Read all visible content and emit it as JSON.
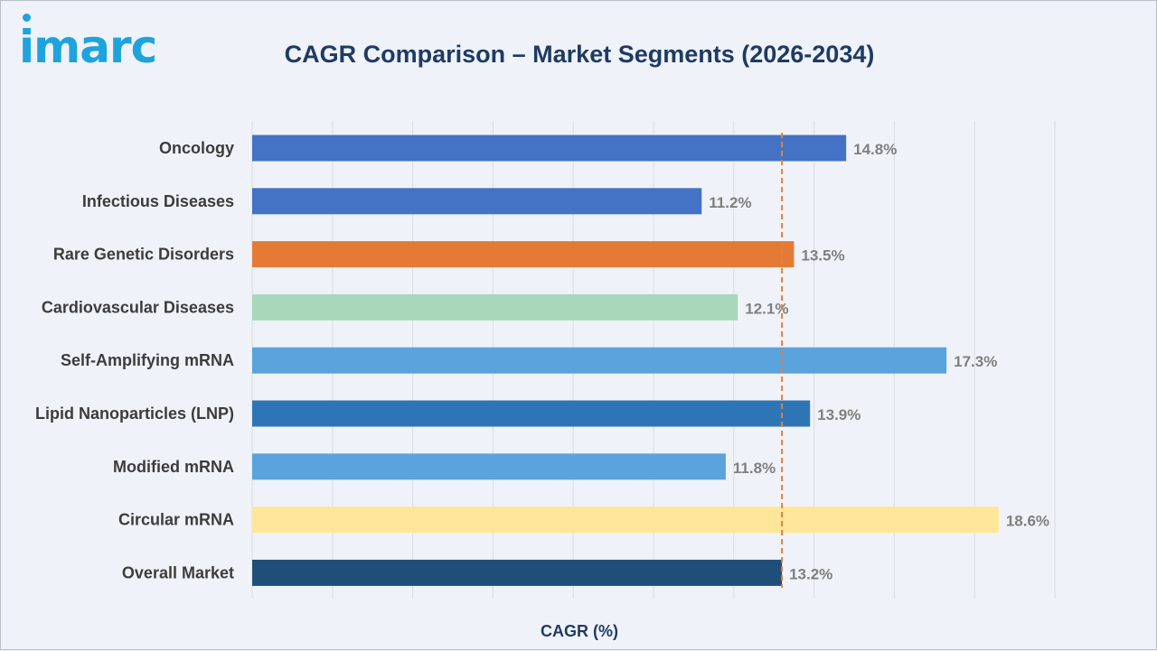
{
  "logo": {
    "text": "imarc"
  },
  "chart_data": {
    "type": "bar",
    "orientation": "horizontal",
    "title": "CAGR Comparison – Market Segments (2026-2034)",
    "xlabel": "CAGR (%)",
    "ylabel": "",
    "xlim": [
      0,
      20
    ],
    "grid": true,
    "reference_line": {
      "value": 13.2,
      "style": "dashed",
      "color": "#e5813a"
    },
    "categories": [
      "Oncology",
      "Infectious Diseases",
      "Rare Genetic Disorders",
      "Cardiovascular Diseases",
      "Self-Amplifying mRNA",
      "Lipid Nanoparticles (LNP)",
      "Modified mRNA",
      "Circular mRNA",
      "Overall Market"
    ],
    "values": [
      14.8,
      11.2,
      13.5,
      12.1,
      17.3,
      13.9,
      11.8,
      18.6,
      13.2
    ],
    "value_labels": [
      "14.8%",
      "11.2%",
      "13.5%",
      "12.1%",
      "17.3%",
      "13.9%",
      "11.8%",
      "18.6%",
      "13.2%"
    ],
    "colors": [
      "#4472c4",
      "#4472c4",
      "#e57a37",
      "#a8d8b9",
      "#5ba3dc",
      "#2e75b6",
      "#5ba3dc",
      "#ffe699",
      "#1f4e79"
    ]
  }
}
